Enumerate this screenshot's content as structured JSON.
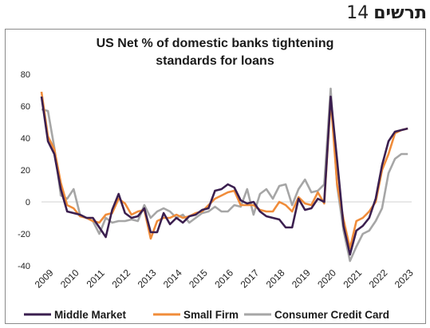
{
  "header": {
    "word": "תרשים",
    "number": "14"
  },
  "chart_data": {
    "type": "line",
    "title_line1": "US Net % of domestic banks tightening",
    "title_line2": "standards for loans",
    "xlabel": "",
    "ylabel": "",
    "ylim": [
      -40,
      80
    ],
    "yticks": [
      80,
      60,
      40,
      20,
      0,
      -20,
      -40
    ],
    "xticks": [
      "2009",
      "2010",
      "2011",
      "2012",
      "2013",
      "2014",
      "2015",
      "2016",
      "2017",
      "2018",
      "2019",
      "2020",
      "2021",
      "2022",
      "2023"
    ],
    "grid": false,
    "legend_position": "bottom",
    "x": [
      2009.0,
      2009.25,
      2009.5,
      2009.75,
      2010.0,
      2010.25,
      2010.5,
      2010.75,
      2011.0,
      2011.25,
      2011.5,
      2011.75,
      2012.0,
      2012.25,
      2012.5,
      2012.75,
      2013.0,
      2013.25,
      2013.5,
      2013.75,
      2014.0,
      2014.25,
      2014.5,
      2014.75,
      2015.0,
      2015.25,
      2015.5,
      2015.75,
      2016.0,
      2016.25,
      2016.5,
      2016.75,
      2017.0,
      2017.25,
      2017.5,
      2017.75,
      2018.0,
      2018.25,
      2018.5,
      2018.75,
      2019.0,
      2019.25,
      2019.5,
      2019.75,
      2020.0,
      2020.25,
      2020.5,
      2020.75,
      2021.0,
      2021.25,
      2021.5,
      2021.75,
      2022.0,
      2022.25,
      2022.5,
      2022.75,
      2023.0,
      2023.25
    ],
    "series": [
      {
        "name": "Middle Market",
        "color": "#3b1f4f",
        "values": [
          66,
          38,
          30,
          8,
          -6,
          -7,
          -8,
          -10,
          -10,
          -16,
          -22,
          -5,
          5,
          -7,
          -10,
          -9,
          -4,
          -19,
          -19,
          -7,
          -14,
          -10,
          -13,
          -9,
          -8,
          -5,
          -4,
          7,
          8,
          11,
          9,
          1,
          -1,
          0,
          -6,
          -9,
          -10,
          -11,
          -16,
          -16,
          2,
          -5,
          -4,
          2,
          0,
          66,
          26,
          -15,
          -33,
          -18,
          -15,
          -10,
          2,
          23,
          38,
          44,
          45,
          46
        ]
      },
      {
        "name": "Small Firm",
        "color": "#f08c3a",
        "values": [
          69,
          41,
          33,
          12,
          -2,
          -4,
          -9,
          -10,
          -12,
          -13,
          -8,
          -7,
          2,
          -1,
          -8,
          -6,
          -5,
          -23,
          -12,
          -10,
          -10,
          -8,
          -10,
          -9,
          -7,
          -6,
          -2,
          2,
          4,
          6,
          7,
          -2,
          -2,
          -2,
          -5,
          -6,
          -6,
          0,
          -2,
          -6,
          3,
          -1,
          -2,
          6,
          -1,
          64,
          11,
          -11,
          -29,
          -12,
          -10,
          -6,
          0,
          20,
          30,
          43,
          45,
          46
        ]
      },
      {
        "name": "Consumer Credit Card",
        "color": "#a6a6a6",
        "values": [
          58,
          57,
          34,
          4,
          2,
          8,
          -8,
          -10,
          -12,
          -20,
          -10,
          -13,
          -12,
          -12,
          -11,
          -12,
          -2,
          -10,
          -6,
          -4,
          -6,
          -10,
          -8,
          -13,
          -10,
          -7,
          -6,
          -3,
          -6,
          -6,
          -2,
          -3,
          8,
          -8,
          5,
          8,
          2,
          10,
          11,
          -2,
          8,
          14,
          6,
          7,
          11,
          71,
          10,
          -18,
          -37,
          -28,
          -20,
          -18,
          -12,
          -4,
          18,
          27,
          30,
          30
        ]
      }
    ]
  }
}
